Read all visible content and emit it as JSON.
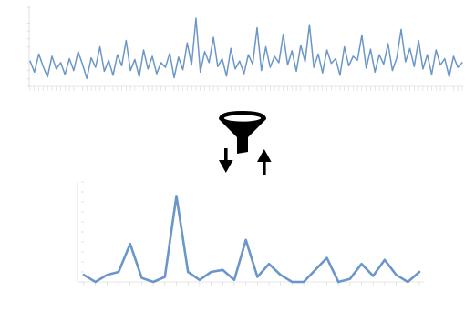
{
  "colors": {
    "series_line": "#6a96c8",
    "axis": "#cfcfcf",
    "icon": "#000000",
    "background": "#ffffff"
  },
  "icons": {
    "filter": "funnel-filter-icon",
    "down": "arrow-down-icon",
    "up": "arrow-up-icon"
  },
  "chart_data": [
    {
      "type": "line",
      "title": "",
      "xlabel": "",
      "ylabel": "",
      "ylim": [
        0,
        1
      ],
      "y_tick_count": 11,
      "x_tick_count": 100,
      "series": [
        {
          "values": [
            0.32,
            0.18,
            0.41,
            0.25,
            0.12,
            0.38,
            0.22,
            0.3,
            0.15,
            0.35,
            0.2,
            0.44,
            0.28,
            0.1,
            0.36,
            0.24,
            0.5,
            0.19,
            0.33,
            0.14,
            0.4,
            0.26,
            0.58,
            0.2,
            0.34,
            0.12,
            0.46,
            0.22,
            0.38,
            0.16,
            0.3,
            0.24,
            0.42,
            0.11,
            0.37,
            0.21,
            0.55,
            0.27,
            0.86,
            0.18,
            0.44,
            0.3,
            0.62,
            0.25,
            0.35,
            0.13,
            0.48,
            0.22,
            0.32,
            0.16,
            0.4,
            0.28,
            0.74,
            0.2,
            0.5,
            0.24,
            0.38,
            0.3,
            0.66,
            0.27,
            0.45,
            0.19,
            0.52,
            0.31,
            0.78,
            0.24,
            0.41,
            0.17,
            0.46,
            0.29,
            0.35,
            0.14,
            0.5,
            0.26,
            0.38,
            0.33,
            0.65,
            0.23,
            0.47,
            0.18,
            0.4,
            0.28,
            0.54,
            0.2,
            0.36,
            0.72,
            0.31,
            0.48,
            0.25,
            0.58,
            0.22,
            0.4,
            0.15,
            0.46,
            0.27,
            0.35,
            0.12,
            0.38,
            0.24,
            0.3
          ]
        }
      ]
    },
    {
      "type": "line",
      "title": "",
      "xlabel": "",
      "ylabel": "",
      "ylim": [
        0,
        1
      ],
      "y_tick_count": 11,
      "x_tick_count": 30,
      "series": [
        {
          "values": [
            0.07,
            0.0,
            0.07,
            0.1,
            0.38,
            0.04,
            0.0,
            0.05,
            0.86,
            0.1,
            0.02,
            0.1,
            0.12,
            0.02,
            0.42,
            0.05,
            0.18,
            0.07,
            0.0,
            0.0,
            0.12,
            0.24,
            0.0,
            0.03,
            0.18,
            0.06,
            0.22,
            0.07,
            0.0,
            0.1
          ]
        }
      ]
    }
  ]
}
